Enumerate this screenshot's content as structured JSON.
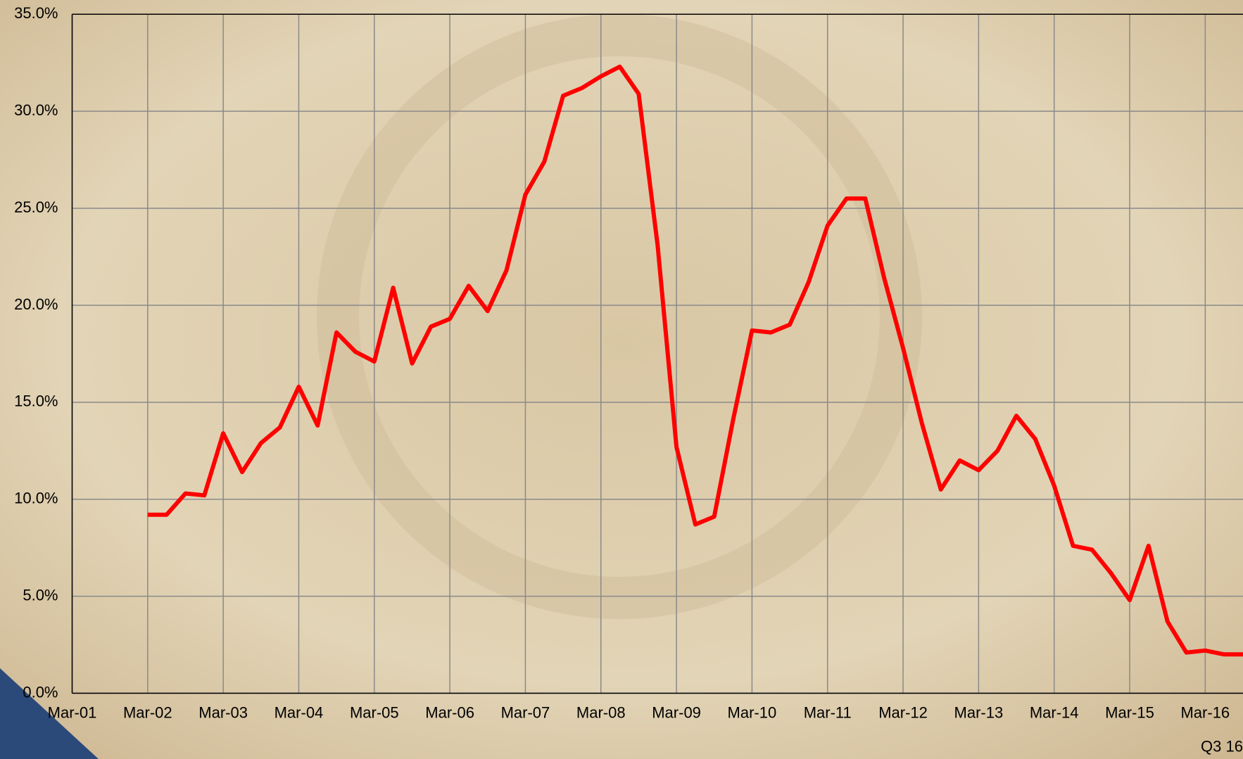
{
  "chart_data": {
    "type": "line",
    "categories": [
      "Mar-01",
      null,
      null,
      null,
      "Mar-02",
      null,
      null,
      null,
      "Mar-03",
      null,
      null,
      null,
      "Mar-04",
      null,
      null,
      null,
      "Mar-05",
      null,
      null,
      null,
      "Mar-06",
      null,
      null,
      null,
      "Mar-07",
      null,
      null,
      null,
      "Mar-08",
      null,
      null,
      null,
      "Mar-09",
      null,
      null,
      null,
      "Mar-10",
      null,
      null,
      null,
      "Mar-11",
      null,
      null,
      null,
      "Mar-12",
      null,
      null,
      null,
      "Mar-13",
      null,
      null,
      null,
      "Mar-14",
      null,
      null,
      null,
      "Mar-15",
      null,
      null,
      null,
      "Mar-16",
      null,
      "Q3 16"
    ],
    "series": [
      {
        "color": "#ff0000",
        "values": [
          null,
          null,
          null,
          null,
          9.2,
          9.2,
          10.3,
          10.2,
          13.4,
          11.4,
          12.9,
          13.7,
          15.8,
          13.8,
          18.6,
          17.6,
          17.1,
          20.9,
          17.0,
          18.9,
          19.3,
          21.0,
          19.7,
          21.8,
          25.7,
          27.4,
          30.8,
          31.2,
          31.8,
          32.3,
          30.9,
          23.1,
          12.7,
          8.7,
          9.1,
          14.1,
          18.7,
          18.6,
          19.0,
          21.2,
          24.1,
          25.5,
          25.5,
          21.4,
          17.8,
          13.9,
          10.5,
          12.0,
          11.5,
          12.5,
          14.3,
          13.1,
          10.7,
          7.6,
          7.4,
          6.2,
          4.8,
          7.6,
          3.7,
          2.1,
          2.2,
          2.0,
          2.0
        ]
      }
    ],
    "ylim": [
      0,
      35
    ],
    "yticks": [
      {
        "value": 0,
        "label": "0.0%"
      },
      {
        "value": 5,
        "label": "5.0%"
      },
      {
        "value": 10,
        "label": "10.0%"
      },
      {
        "value": 15,
        "label": "15.0%"
      },
      {
        "value": 20,
        "label": "20.0%"
      },
      {
        "value": 25,
        "label": "25.0%"
      },
      {
        "value": 30,
        "label": "30.0%"
      },
      {
        "value": 35,
        "label": "35.0%"
      }
    ],
    "grid": true
  }
}
